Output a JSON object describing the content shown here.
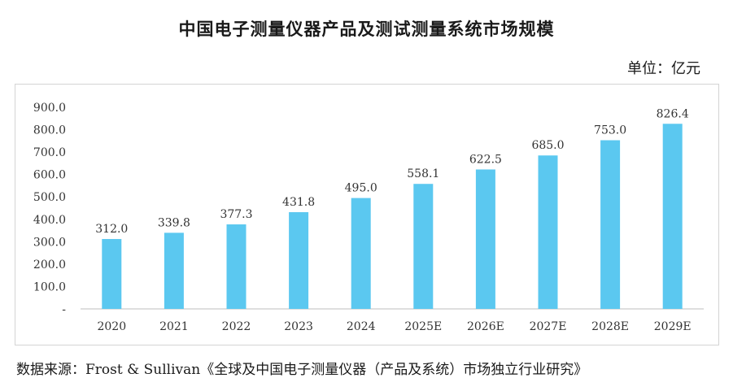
{
  "header": {
    "title": "中国电子测量仪器产品及测试测量系统市场规模",
    "unit": "单位：亿元"
  },
  "source": {
    "label": "数据来源：",
    "text": "Frost & Sullivan《全球及中国电子测量仪器（产品及系统）市场独立行业研究》"
  },
  "colors": {
    "bar": "#5bc8f0",
    "axis": "#bfbfbf",
    "text": "#333333"
  },
  "chart_data": {
    "type": "bar",
    "categories": [
      "2020",
      "2021",
      "2022",
      "2023",
      "2024",
      "2025E",
      "2026E",
      "2027E",
      "2028E",
      "2029E"
    ],
    "values": [
      312.0,
      339.8,
      377.3,
      431.8,
      495.0,
      558.1,
      622.5,
      685.0,
      753.0,
      826.4
    ],
    "data_labels": [
      "312.0",
      "339.8",
      "377.3",
      "431.8",
      "495.0",
      "558.1",
      "622.5",
      "685.0",
      "753.0",
      "826.4"
    ],
    "yticks": [
      "-",
      "100.0",
      "200.0",
      "300.0",
      "400.0",
      "500.0",
      "600.0",
      "700.0",
      "800.0",
      "900.0"
    ],
    "ylim": [
      0,
      900
    ],
    "grid": false,
    "legend": "none"
  }
}
